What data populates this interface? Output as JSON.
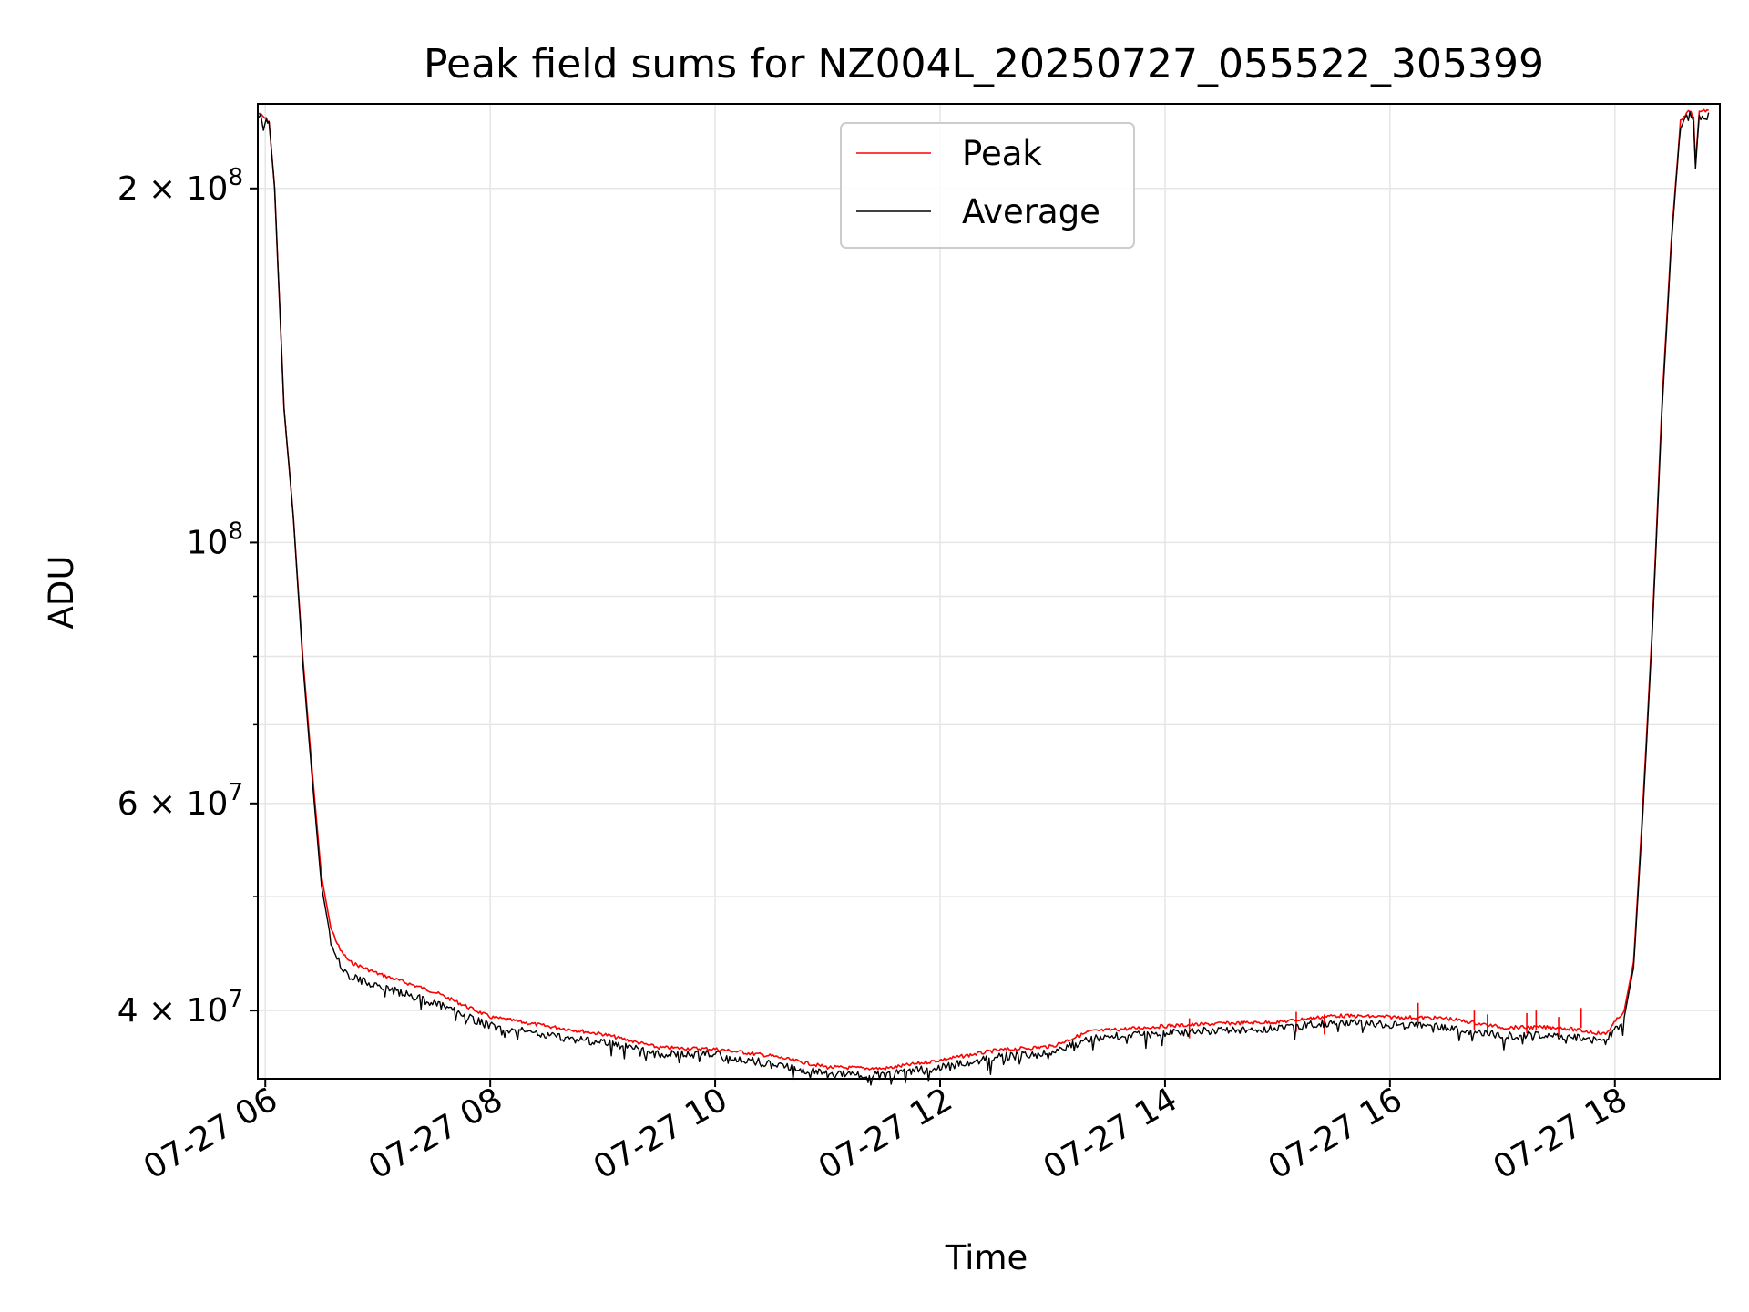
{
  "chart_data": {
    "type": "line",
    "title": "Peak field sums for NZ004L_20250727_055522_305399",
    "xlabel": "Time",
    "ylabel": "ADU",
    "yscale": "log",
    "grid": true,
    "legend_placement": "upper center",
    "xlim": [
      "2025-07-27 05:56",
      "2025-07-27 18:56"
    ],
    "ylim": [
      35000000,
      236000000
    ],
    "x_ticks": [
      {
        "value": "2025-07-27 06:00",
        "label": "07-27 06"
      },
      {
        "value": "2025-07-27 08:00",
        "label": "07-27 08"
      },
      {
        "value": "2025-07-27 10:00",
        "label": "07-27 10"
      },
      {
        "value": "2025-07-27 12:00",
        "label": "07-27 12"
      },
      {
        "value": "2025-07-27 14:00",
        "label": "07-27 14"
      },
      {
        "value": "2025-07-27 16:00",
        "label": "07-27 16"
      },
      {
        "value": "2025-07-27 18:00",
        "label": "07-27 18"
      }
    ],
    "y_major_ticks": [
      {
        "value": 40000000,
        "mantissa": "4",
        "base": "× 10",
        "exp": "7"
      },
      {
        "value": 60000000,
        "mantissa": "6",
        "base": "× 10",
        "exp": "7"
      },
      {
        "value": 100000000,
        "mantissa": "",
        "base": "10",
        "exp": "8"
      },
      {
        "value": 200000000,
        "mantissa": "2",
        "base": "× 10",
        "exp": "8"
      }
    ],
    "y_minor_ticks": [
      50000000,
      70000000,
      80000000,
      90000000
    ],
    "series": [
      {
        "name": "Peak",
        "color": "#ff0000",
        "points": [
          [
            "2025-07-27 05:56",
            232000000
          ],
          [
            "2025-07-27 06:02",
            228000000
          ],
          [
            "2025-07-27 06:05",
            200000000
          ],
          [
            "2025-07-27 06:10",
            130000000
          ],
          [
            "2025-07-27 06:15",
            105000000
          ],
          [
            "2025-07-27 06:20",
            80000000
          ],
          [
            "2025-07-27 06:25",
            64000000
          ],
          [
            "2025-07-27 06:30",
            52000000
          ],
          [
            "2025-07-27 06:35",
            47000000
          ],
          [
            "2025-07-27 06:40",
            45000000
          ],
          [
            "2025-07-27 06:45",
            44000000
          ],
          [
            "2025-07-27 07:00",
            43000000
          ],
          [
            "2025-07-27 07:30",
            41500000
          ],
          [
            "2025-07-27 08:00",
            39500000
          ],
          [
            "2025-07-27 08:30",
            38800000
          ],
          [
            "2025-07-27 09:00",
            38200000
          ],
          [
            "2025-07-27 09:30",
            37200000
          ],
          [
            "2025-07-27 10:00",
            37100000
          ],
          [
            "2025-07-27 10:30",
            36600000
          ],
          [
            "2025-07-27 11:00",
            35800000
          ],
          [
            "2025-07-27 11:30",
            35700000
          ],
          [
            "2025-07-27 12:00",
            36300000
          ],
          [
            "2025-07-27 12:30",
            37000000
          ],
          [
            "2025-07-27 13:00",
            37300000
          ],
          [
            "2025-07-27 13:20",
            38400000
          ],
          [
            "2025-07-27 14:00",
            38800000
          ],
          [
            "2025-07-27 14:30",
            39000000
          ],
          [
            "2025-07-27 15:00",
            39100000
          ],
          [
            "2025-07-27 15:30",
            39600000
          ],
          [
            "2025-07-27 16:00",
            39500000
          ],
          [
            "2025-07-27 16:30",
            39400000
          ],
          [
            "2025-07-27 17:00",
            38700000
          ],
          [
            "2025-07-27 17:30",
            38700000
          ],
          [
            "2025-07-27 17:55",
            38200000
          ],
          [
            "2025-07-27 18:05",
            40000000
          ],
          [
            "2025-07-27 18:10",
            44000000
          ],
          [
            "2025-07-27 18:15",
            60000000
          ],
          [
            "2025-07-27 18:20",
            85000000
          ],
          [
            "2025-07-27 18:25",
            130000000
          ],
          [
            "2025-07-27 18:30",
            180000000
          ],
          [
            "2025-07-27 18:35",
            228000000
          ],
          [
            "2025-07-27 18:40",
            233000000
          ],
          [
            "2025-07-27 18:42",
            230000000
          ],
          [
            "2025-07-27 18:43",
            210000000
          ],
          [
            "2025-07-27 18:45",
            232000000
          ],
          [
            "2025-07-27 18:50",
            233000000
          ]
        ],
        "spikes": [
          [
            "2025-07-27 14:13",
            39400000
          ],
          [
            "2025-07-27 15:10",
            39900000
          ],
          [
            "2025-07-27 15:25",
            39700000
          ],
          [
            "2025-07-27 16:15",
            40600000
          ],
          [
            "2025-07-27 16:45",
            40000000
          ],
          [
            "2025-07-27 16:52",
            39700000
          ],
          [
            "2025-07-27 17:13",
            39800000
          ],
          [
            "2025-07-27 17:18",
            40000000
          ],
          [
            "2025-07-27 17:30",
            39500000
          ],
          [
            "2025-07-27 17:42",
            40200000
          ]
        ]
      },
      {
        "name": "Average",
        "color": "#000000",
        "points": [
          [
            "2025-07-27 05:56",
            232000000
          ],
          [
            "2025-07-27 06:02",
            228000000
          ],
          [
            "2025-07-27 06:05",
            200000000
          ],
          [
            "2025-07-27 06:10",
            130000000
          ],
          [
            "2025-07-27 06:15",
            105000000
          ],
          [
            "2025-07-27 06:20",
            79000000
          ],
          [
            "2025-07-27 06:25",
            63000000
          ],
          [
            "2025-07-27 06:30",
            51000000
          ],
          [
            "2025-07-27 06:35",
            46000000
          ],
          [
            "2025-07-27 06:40",
            44000000
          ],
          [
            "2025-07-27 06:45",
            43000000
          ],
          [
            "2025-07-27 07:00",
            42200000
          ],
          [
            "2025-07-27 07:30",
            40800000
          ],
          [
            "2025-07-27 08:00",
            39000000
          ],
          [
            "2025-07-27 08:30",
            38300000
          ],
          [
            "2025-07-27 09:00",
            37800000
          ],
          [
            "2025-07-27 09:30",
            36900000
          ],
          [
            "2025-07-27 10:00",
            36900000
          ],
          [
            "2025-07-27 10:30",
            36200000
          ],
          [
            "2025-07-27 11:00",
            35500000
          ],
          [
            "2025-07-27 11:30",
            35400000
          ],
          [
            "2025-07-27 12:00",
            36000000
          ],
          [
            "2025-07-27 12:30",
            36700000
          ],
          [
            "2025-07-27 13:00",
            37000000
          ],
          [
            "2025-07-27 13:20",
            38100000
          ],
          [
            "2025-07-27 14:00",
            38500000
          ],
          [
            "2025-07-27 14:30",
            38700000
          ],
          [
            "2025-07-27 15:00",
            38800000
          ],
          [
            "2025-07-27 15:30",
            39300000
          ],
          [
            "2025-07-27 16:00",
            39100000
          ],
          [
            "2025-07-27 16:30",
            38900000
          ],
          [
            "2025-07-27 17:00",
            38300000
          ],
          [
            "2025-07-27 17:30",
            38300000
          ],
          [
            "2025-07-27 17:55",
            37900000
          ],
          [
            "2025-07-27 18:05",
            39500000
          ],
          [
            "2025-07-27 18:10",
            43500000
          ],
          [
            "2025-07-27 18:15",
            59000000
          ],
          [
            "2025-07-27 18:20",
            84000000
          ],
          [
            "2025-07-27 18:25",
            128000000
          ],
          [
            "2025-07-27 18:30",
            178000000
          ],
          [
            "2025-07-27 18:35",
            227000000
          ],
          [
            "2025-07-27 18:40",
            232000000
          ],
          [
            "2025-07-27 18:42",
            228000000
          ],
          [
            "2025-07-27 18:43",
            208000000
          ],
          [
            "2025-07-27 18:45",
            231000000
          ],
          [
            "2025-07-27 18:50",
            232000000
          ]
        ]
      }
    ]
  }
}
